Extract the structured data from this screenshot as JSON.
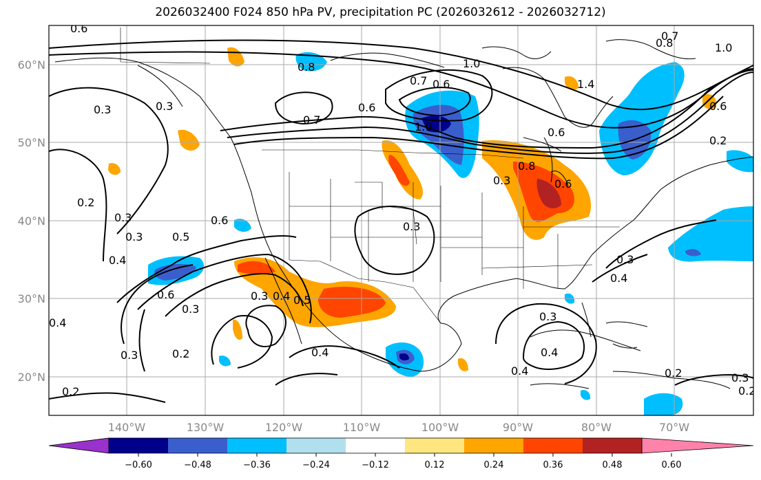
{
  "title": "2026032400 F024 850 hPa PV, precipitation PC (2026032612 - 2026032712)",
  "lat_labels": [
    "60°N",
    "50°N",
    "40°N",
    "30°N",
    "20°N"
  ],
  "lon_labels": [
    "140°W",
    "130°W",
    "120°W",
    "110°W",
    "100°W",
    "90°W",
    "80°W",
    "70°W"
  ],
  "map_extent": {
    "lon_min": -149,
    "lon_max": -59,
    "lat_min": 15,
    "lat_max": 65
  },
  "colorbar": {
    "ticks": [
      "−0.60",
      "−0.48",
      "−0.36",
      "−0.24",
      "−0.12",
      "0.12",
      "0.24",
      "0.36",
      "0.48",
      "0.60"
    ],
    "colors": [
      "#9932cc",
      "#00008b",
      "#3a5fcd",
      "#00bfff",
      "#b2dfee",
      "#ffffff",
      "#ffe680",
      "#ffa500",
      "#ff4500",
      "#b22222",
      "#ff82ab"
    ]
  },
  "contour_labels": [
    "0.6",
    "0.7",
    "0.8",
    "1.0",
    "0.3",
    "0.8",
    "0.7",
    "0.6",
    "1.0",
    "0.6",
    "1.4",
    "0.7",
    "0.6",
    "1.0",
    "0.3",
    "0.2",
    "0.3",
    "0.3",
    "0.6",
    "0.5",
    "0.4",
    "0.6",
    "0.3",
    "0.8",
    "0.3",
    "0.3",
    "0.6",
    "0.6",
    "0.4",
    "0.3",
    "0.3",
    "0.4",
    "0.3",
    "0.5",
    "0.4",
    "0.4",
    "0.3",
    "0.2",
    "0.4",
    "0.3",
    "0.4",
    "0.2",
    "0.2",
    "0.2",
    "0.2"
  ]
}
